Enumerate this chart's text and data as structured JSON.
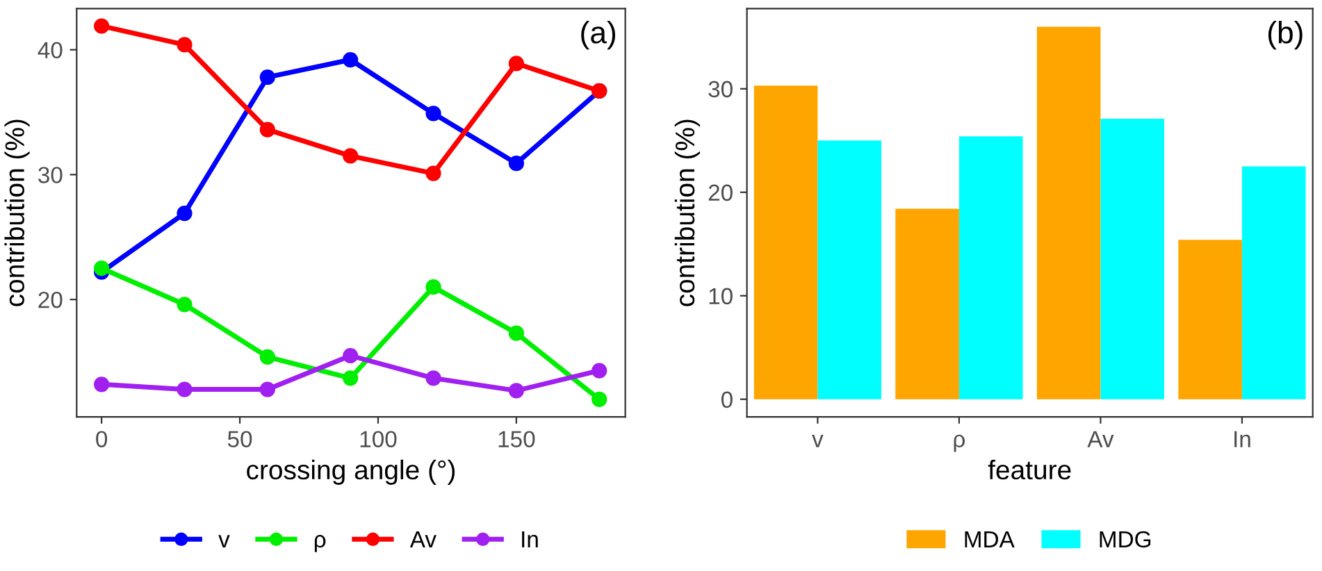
{
  "chart_data": [
    {
      "type": "line",
      "xlabel": "crossing angle (°)",
      "ylabel": "contribution (%)",
      "annotations": [
        "(a)"
      ],
      "x": [
        0,
        30,
        60,
        90,
        120,
        150,
        180
      ],
      "xlim": [
        -9,
        189.4
      ],
      "ylim": [
        10.6,
        43.3
      ],
      "xticks": [
        0,
        50,
        100,
        150
      ],
      "yticks": [
        20,
        30,
        40
      ],
      "grid": false,
      "legend": "bottom",
      "marker": "circle",
      "line_style": "solid",
      "series": [
        {
          "name": "v",
          "color": "#0000ff",
          "values": [
            22.2,
            26.9,
            37.8,
            39.2,
            34.9,
            30.9,
            36.7
          ]
        },
        {
          "name": "ρ",
          "color": "#00ee00",
          "values": [
            22.5,
            19.6,
            15.4,
            13.7,
            21.0,
            17.3,
            12.0
          ]
        },
        {
          "name": "Av",
          "color": "#ff0000",
          "values": [
            41.9,
            40.4,
            33.6,
            31.5,
            30.1,
            38.9,
            36.7
          ]
        },
        {
          "name": "In",
          "color": "#a020f0",
          "values": [
            13.2,
            12.8,
            12.8,
            15.5,
            13.7,
            12.7,
            14.3
          ]
        }
      ]
    },
    {
      "type": "bar",
      "xlabel": "feature",
      "ylabel": "contribution (%)",
      "annotations": [
        "(b)"
      ],
      "categories": [
        "v",
        "ρ",
        "Av",
        "In"
      ],
      "ylim": [
        -1.7,
        37.75
      ],
      "yticks": [
        0,
        10,
        20,
        30
      ],
      "grid": false,
      "legend": "bottom",
      "series": [
        {
          "name": "MDA",
          "color": "#ffa500",
          "values": [
            30.3,
            18.4,
            36.0,
            15.4
          ]
        },
        {
          "name": "MDG",
          "color": "#00ffff",
          "values": [
            25.0,
            25.4,
            27.1,
            22.5
          ]
        }
      ]
    }
  ]
}
